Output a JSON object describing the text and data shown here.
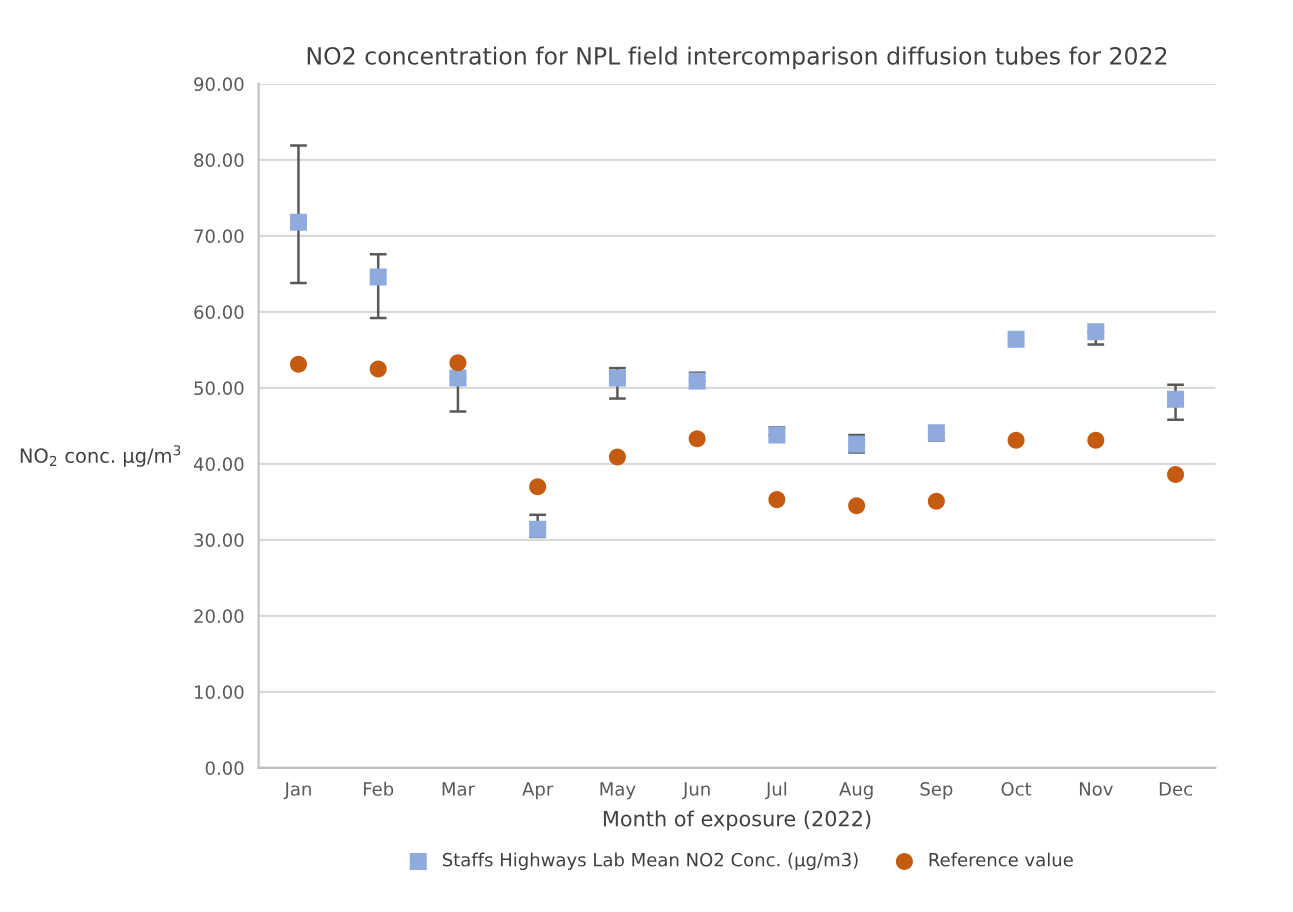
{
  "chart_data": {
    "type": "scatter",
    "title": "NO2 concentration for NPL field intercomparison diffusion tubes for 2022",
    "xlabel": "Month of exposure (2022)",
    "ylabel": "NO$_{2}$ conc. µg/m$^{3}$",
    "categories": [
      "Jan",
      "Feb",
      "Mar",
      "Apr",
      "May",
      "Jun",
      "Jul",
      "Aug",
      "Sep",
      "Oct",
      "Nov",
      "Dec"
    ],
    "series": [
      {
        "name": "Staffs Highways Lab Mean NO2 Conc. (µg/m3)",
        "color": "#8faadc",
        "marker": "square",
        "values": [
          71.8,
          64.6,
          51.3,
          31.4,
          51.3,
          50.9,
          43.8,
          42.6,
          44.1,
          56.4,
          57.4,
          48.5
        ],
        "errors": [
          [
            63.8,
            81.9
          ],
          [
            59.2,
            67.6
          ],
          [
            46.9,
            51.3
          ],
          [
            30.4,
            33.3
          ],
          [
            48.6,
            52.6
          ],
          [
            50.9,
            52.0
          ],
          [
            43.8,
            44.8
          ],
          [
            41.5,
            43.8
          ],
          [
            43.1,
            44.1
          ],
          null,
          [
            55.7,
            57.4
          ],
          [
            45.8,
            50.4
          ]
        ]
      },
      {
        "name": "Reference value",
        "color": "#c55a11",
        "marker": "circle",
        "values": [
          53.1,
          52.5,
          53.3,
          37.0,
          40.9,
          43.3,
          35.3,
          34.5,
          35.1,
          43.1,
          43.1,
          38.6
        ]
      }
    ],
    "ylim": [
      0,
      90
    ],
    "yticks": [
      {
        "value": 0,
        "label": "0.00"
      },
      {
        "value": 10,
        "label": "10.00"
      },
      {
        "value": 20,
        "label": "20.00"
      },
      {
        "value": 30,
        "label": "30.00"
      },
      {
        "value": 40,
        "label": "40.00"
      },
      {
        "value": 50,
        "label": "50.00"
      },
      {
        "value": 60,
        "label": "60.00"
      },
      {
        "value": 70,
        "label": "70.00"
      },
      {
        "value": 80,
        "label": "80.00"
      },
      {
        "value": 90,
        "label": "90.00"
      }
    ],
    "grid": "y",
    "legend": "bottom"
  }
}
